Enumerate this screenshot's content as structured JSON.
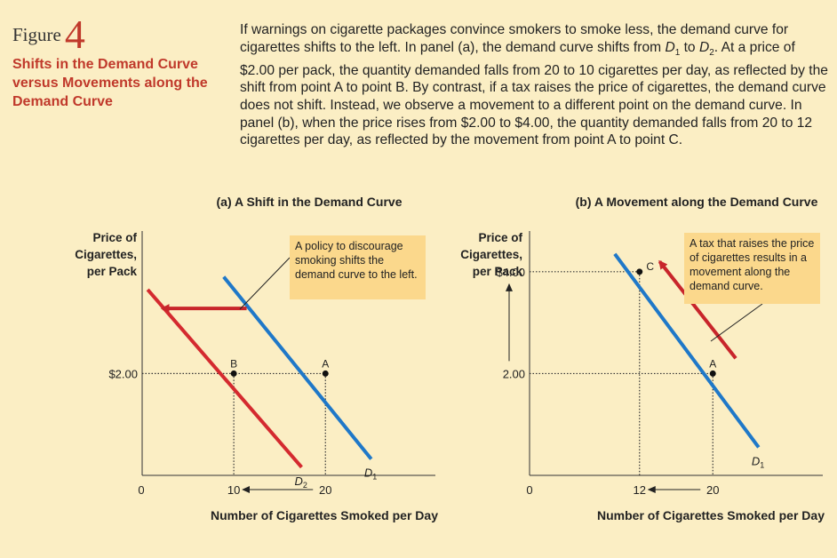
{
  "figure": {
    "label": "Figure",
    "number": "4",
    "title": "Shifts in the Demand Curve versus Movements along the Demand Curve",
    "caption_parts": [
      "If warnings on cigarette packages convince smokers to smoke less, the demand curve for cigarettes shifts to the left. In panel (a), the demand curve shifts from ",
      "D",
      "1",
      " to ",
      "D",
      "2",
      ". At a price of $2.00 per pack, the quantity demanded falls from 20 to 10 cigarettes per day, as reflected by the shift from point A to point B. By contrast, if a tax raises the price of cigarettes, the demand curve does not shift. Instead, we observe a movement to a different point on the demand curve. In panel (b), when the price rises from $2.00 to $4.00, the quantity demanded falls from 20 to 12 cigarettes per day, as reflected by the movement from point A to point C."
    ]
  },
  "colors": {
    "d1": "#1f78c8",
    "d2": "#d42a2f",
    "arrow": "#c8252b",
    "callout_bg": "#fbd88c",
    "title": "#c0392b"
  },
  "chart_data": [
    {
      "type": "line",
      "title": "(a) A Shift in the Demand Curve",
      "ylabel_lines": [
        "Price of",
        "Cigarettes,",
        "per Pack"
      ],
      "xlabel": "Number of Cigarettes Smoked per Day",
      "origin_label": "0",
      "xlim": [
        0,
        32
      ],
      "ylim": [
        0,
        4.8
      ],
      "x_ticks": [
        {
          "value": 10,
          "label": "10"
        },
        {
          "value": 20,
          "label": "20"
        }
      ],
      "y_ticks": [
        {
          "value": 2,
          "label": "$2.00"
        }
      ],
      "series": [
        {
          "name": "D1",
          "label_main": "D",
          "label_sub": "1",
          "color_key": "d1",
          "points": [
            [
              8.9,
              3.9
            ],
            [
              25,
              0.32
            ]
          ]
        },
        {
          "name": "D2",
          "label_main": "D",
          "label_sub": "2",
          "color_key": "d2",
          "points": [
            [
              0.6,
              3.65
            ],
            [
              17.4,
              0.16
            ]
          ]
        }
      ],
      "points": [
        {
          "label": "A",
          "x": 20,
          "y": 2
        },
        {
          "label": "B",
          "x": 10,
          "y": 2
        }
      ],
      "shift_arrow": {
        "from": [
          11.4,
          3.28
        ],
        "to": [
          2.2,
          3.28
        ]
      },
      "callout": {
        "text": "A policy to discourage smoking shifts the demand curve to the left."
      }
    },
    {
      "type": "line",
      "title": "(b) A Movement along the Demand Curve",
      "ylabel_lines": [
        "Price of",
        "Cigarettes,",
        "per Pack"
      ],
      "xlabel": "Number of Cigarettes Smoked per Day",
      "origin_label": "0",
      "xlim": [
        0,
        32
      ],
      "ylim": [
        0,
        4.8
      ],
      "x_ticks": [
        {
          "value": 12,
          "label": "12"
        },
        {
          "value": 20,
          "label": "20"
        }
      ],
      "y_ticks": [
        {
          "value": 2,
          "label": "2.00"
        },
        {
          "value": 4,
          "label": "$4.00"
        }
      ],
      "series": [
        {
          "name": "D1",
          "label_main": "D",
          "label_sub": "1",
          "color_key": "d1",
          "points": [
            [
              9.3,
              4.35
            ],
            [
              25,
              0.55
            ]
          ]
        }
      ],
      "points": [
        {
          "label": "A",
          "x": 20,
          "y": 2
        },
        {
          "label": "C",
          "x": 12,
          "y": 4
        }
      ],
      "movement_arrow": {
        "from": [
          22.5,
          2.3
        ],
        "to": [
          14.2,
          4.2
        ]
      },
      "callout": {
        "text": "A tax that raises the price of cigarettes results in a movement along the demand curve."
      }
    }
  ]
}
